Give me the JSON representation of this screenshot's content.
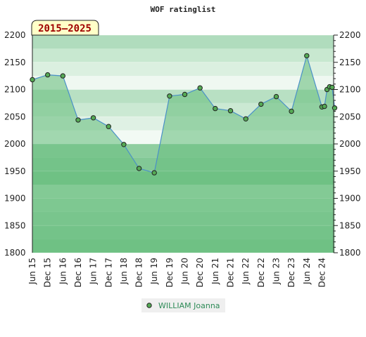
{
  "chart_data": {
    "type": "area",
    "title": "WOF ratinglist",
    "badge": "2015–2025",
    "ylim": [
      1800,
      2200
    ],
    "yticks": [
      1800,
      1850,
      1900,
      1950,
      2000,
      2050,
      2100,
      2150,
      2200
    ],
    "xlim": [
      0,
      118
    ],
    "x_tick_positions": [
      0,
      6,
      12,
      18,
      24,
      30,
      36,
      42,
      48,
      54,
      60,
      66,
      72,
      78,
      84,
      90,
      96,
      102,
      108,
      114
    ],
    "x_tick_labels": [
      "Jun 15",
      "Dec 15",
      "Jun 16",
      "Dec 16",
      "Jun 17",
      "Dec 17",
      "Jun 18",
      "Dec 18",
      "Jun 19",
      "Dec 19",
      "Jun 20",
      "Dec 20",
      "Jun 21",
      "Dec 21",
      "Jun 22",
      "Dec 22",
      "Jun 23",
      "Dec 23",
      "Jun 24",
      "Dec 24"
    ],
    "series": [
      {
        "name": "WILLIAM Joanna",
        "color": "#55aa55",
        "line_color": "#4a90c8",
        "points": [
          [
            0,
            2118
          ],
          [
            6,
            2127
          ],
          [
            12,
            2125
          ],
          [
            18,
            2044
          ],
          [
            24,
            2048
          ],
          [
            30,
            2032
          ],
          [
            36,
            1999
          ],
          [
            42,
            1955
          ],
          [
            48,
            1947
          ],
          [
            54,
            2088
          ],
          [
            60,
            2091
          ],
          [
            66,
            2103
          ],
          [
            72,
            2065
          ],
          [
            78,
            2061
          ],
          [
            84,
            2046
          ],
          [
            90,
            2073
          ],
          [
            96,
            2087
          ],
          [
            102,
            2060
          ],
          [
            108,
            2162
          ],
          [
            114,
            2068
          ],
          [
            115,
            2069
          ],
          [
            116,
            2100
          ],
          [
            117,
            2105
          ],
          [
            118,
            2104
          ],
          [
            119,
            2066
          ]
        ]
      }
    ],
    "band_colors": [
      "#7cc48f",
      "#cfe9d4",
      "#e4f3e7",
      "#f3fbf4"
    ],
    "legend": "bottom-center",
    "grid": true
  }
}
